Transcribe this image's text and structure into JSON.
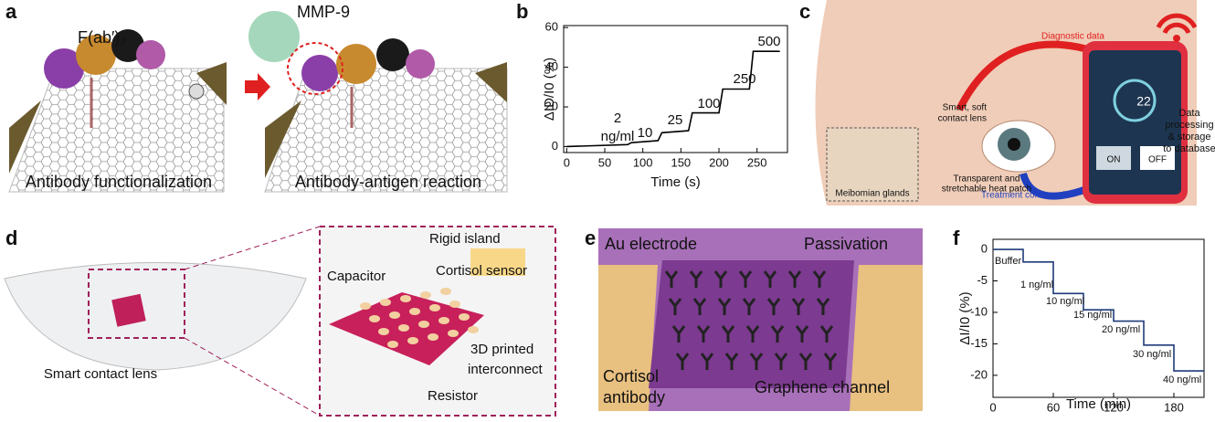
{
  "panels": {
    "a": {
      "label": "a",
      "fab": "F(ab′)₂",
      "antigen": "MMP-9",
      "caption_left": "Antibody functionalization",
      "caption_right": "Antibody-antigen reaction"
    },
    "b": {
      "label": "b"
    },
    "c": {
      "label": "c",
      "diagnostic": "Diagnostic data",
      "lens": [
        "Smart, soft",
        "contact lens"
      ],
      "glands": "Meibomian glands",
      "patch": [
        "Transparent and",
        "stretchable heat patch"
      ],
      "treatment": "Treatment command",
      "processing": [
        "Data",
        "processing",
        "& storage",
        "to database"
      ],
      "phone_value": "22",
      "on": "ON",
      "off": "OFF"
    },
    "d": {
      "label": "d",
      "lens": "Smart contact lens",
      "island": "Rigid island",
      "capacitor": "Capacitor",
      "sensor": "Cortisol sensor",
      "interconnect": [
        "3D printed",
        "interconnect"
      ],
      "resistor": "Resistor"
    },
    "e": {
      "label": "e",
      "electrode": "Au electrode",
      "passivation": "Passivation",
      "antibody": [
        "Cortisol",
        "antibody"
      ],
      "channel": "Graphene channel"
    },
    "f": {
      "label": "f"
    }
  },
  "chart_data": [
    {
      "type": "line",
      "xlabel": "Time (s)",
      "ylabel": "ΔID/I0 (%)",
      "x": [
        0,
        80,
        85,
        120,
        125,
        160,
        165,
        200,
        205,
        240,
        245,
        280
      ],
      "values": [
        0,
        1,
        2,
        3,
        7,
        8,
        17,
        17,
        29,
        29,
        48,
        48
      ],
      "color": "#000000",
      "xlim": [
        -4,
        290
      ],
      "ylim": [
        -3,
        61
      ],
      "xticks": [
        0,
        50,
        100,
        150,
        200,
        250
      ],
      "yticks": [
        0,
        20,
        40,
        60
      ],
      "annotations": [
        "2",
        "ng/ml",
        "10",
        "25",
        "100",
        "250",
        "500"
      ]
    },
    {
      "type": "line",
      "xlabel": "Time (min)",
      "ylabel": "ΔI/I0 (%)",
      "x": [
        0,
        30,
        30,
        60,
        60,
        90,
        90,
        120,
        120,
        150,
        150,
        180,
        180,
        210
      ],
      "values": [
        0,
        0,
        -2,
        -2,
        -7,
        -7,
        -9.6,
        -9.6,
        -11.4,
        -11.4,
        -15.2,
        -15.2,
        -19.3,
        -19.3
      ],
      "color": "#1f3b7a",
      "xlim": [
        0,
        210
      ],
      "ylim": [
        -23.5,
        1.6
      ],
      "xticks": [
        0,
        60,
        120,
        180
      ],
      "yticks": [
        0,
        -5,
        -10,
        -15,
        -20
      ],
      "annotations": [
        "Buffer",
        "1 ng/ml",
        "10 ng/ml",
        "15 ng/ml",
        "20 ng/ml",
        "30 ng/ml",
        "40 ng/ml"
      ]
    }
  ]
}
